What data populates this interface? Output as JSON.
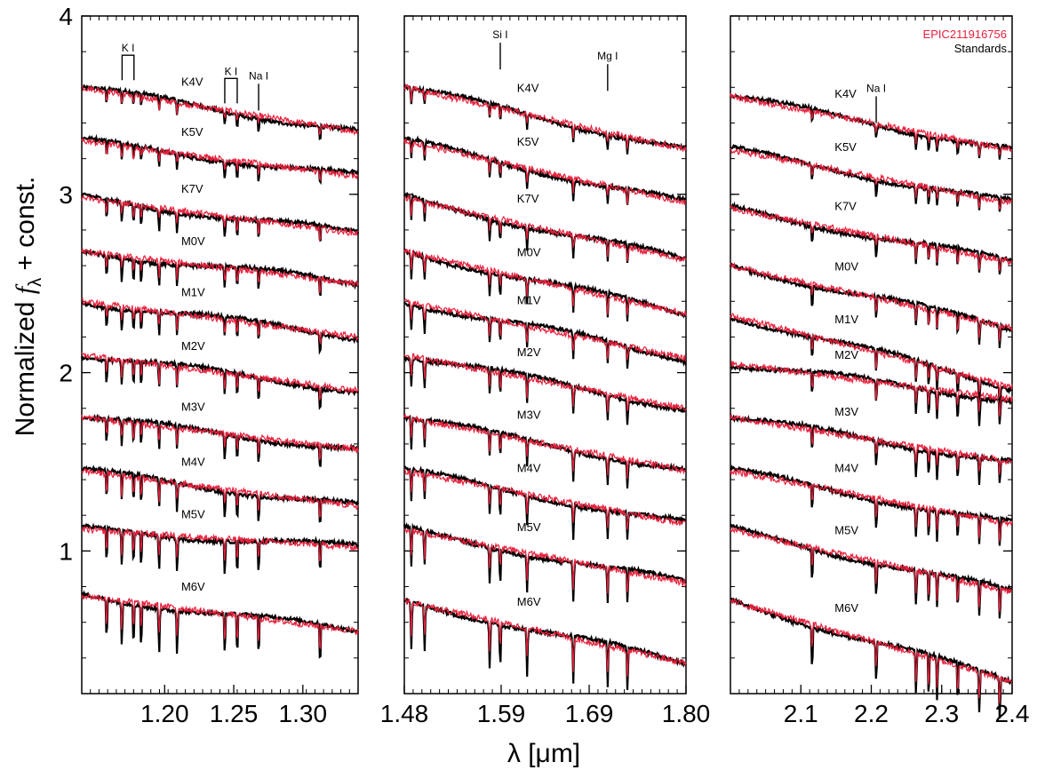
{
  "chart_data": {
    "type": "line",
    "ylabel_prefix": "Normalized ",
    "ylabel_f": "f",
    "ylabel_sub": "λ",
    "ylabel_suffix": " + const.",
    "xlabel": "λ [μm]",
    "ylim": [
      0.2,
      4.0
    ],
    "yticks": [
      1,
      2,
      3,
      4
    ],
    "legend": {
      "placement": "top-right",
      "entries": [
        {
          "name": "EPIC211916756",
          "color": "#e8203c"
        },
        {
          "name": "Standards",
          "color": "#000000"
        }
      ]
    },
    "colors": {
      "target": "#e8203c",
      "standard": "#000000"
    },
    "panels": [
      {
        "xlim": [
          1.14,
          1.34
        ],
        "xticks": [
          1.2,
          1.25,
          1.3
        ],
        "xtick_labels": [
          "1.20",
          "1.25",
          "1.30"
        ],
        "line_labels": [
          {
            "text": "K I",
            "bracket": [
              1.1692,
              1.1778
            ],
            "top": 3.78
          },
          {
            "text": "K I",
            "bracket": [
              1.2435,
              1.2525
            ],
            "top": 3.65
          },
          {
            "text": "Na I",
            "tick": 1.268,
            "top": 3.62
          }
        ]
      },
      {
        "xlim": [
          1.48,
          1.8
        ],
        "xticks": [
          1.48,
          1.59,
          1.69,
          1.8
        ],
        "xtick_labels": [
          "1.48",
          "1.59",
          "1.69",
          "1.80"
        ],
        "line_labels": [
          {
            "text": "Si I",
            "tick": 1.589,
            "top": 3.85
          },
          {
            "text": "Mg I",
            "tick": 1.711,
            "top": 3.73
          }
        ]
      },
      {
        "xlim": [
          2.0,
          2.4
        ],
        "xticks": [
          2.1,
          2.2,
          2.3,
          2.4
        ],
        "xtick_labels": [
          "2.1",
          "2.2",
          "2.3",
          "2.4"
        ],
        "line_labels": [
          {
            "text": "Na I",
            "tick": 2.207,
            "top": 3.55
          }
        ]
      }
    ],
    "series": [
      {
        "name": "K4V",
        "offset": [
          3.6,
          3.6,
          3.55
        ],
        "slope": [
          -0.25,
          -0.35,
          -0.3
        ],
        "depth": 0.05
      },
      {
        "name": "K5V",
        "offset": [
          3.3,
          3.3,
          3.25
        ],
        "slope": [
          -0.2,
          -0.35,
          -0.3
        ],
        "depth": 0.06
      },
      {
        "name": "K7V",
        "offset": [
          2.98,
          2.98,
          2.92
        ],
        "slope": [
          -0.2,
          -0.35,
          -0.3
        ],
        "depth": 0.07
      },
      {
        "name": "M0V",
        "offset": [
          2.68,
          2.68,
          2.6
        ],
        "slope": [
          -0.18,
          -0.35,
          -0.35
        ],
        "depth": 0.08
      },
      {
        "name": "M1V",
        "offset": [
          2.4,
          2.4,
          2.32
        ],
        "slope": [
          -0.2,
          -0.32,
          -0.4
        ],
        "depth": 0.08
      },
      {
        "name": "M2V",
        "offset": [
          2.1,
          2.1,
          2.05
        ],
        "slope": [
          -0.2,
          -0.3,
          -0.2
        ],
        "depth": 0.09
      },
      {
        "name": "M3V",
        "offset": [
          1.75,
          1.75,
          1.75
        ],
        "slope": [
          -0.18,
          -0.3,
          -0.25
        ],
        "depth": 0.09
      },
      {
        "name": "M4V",
        "offset": [
          1.45,
          1.45,
          1.45
        ],
        "slope": [
          -0.2,
          -0.3,
          -0.3
        ],
        "depth": 0.1
      },
      {
        "name": "M5V",
        "offset": [
          1.12,
          1.12,
          1.12
        ],
        "slope": [
          -0.1,
          -0.3,
          -0.35
        ],
        "depth": 0.12
      },
      {
        "name": "M6V",
        "offset": [
          0.75,
          0.72,
          0.72
        ],
        "slope": [
          -0.2,
          -0.35,
          -0.45
        ],
        "depth": 0.15
      }
    ]
  }
}
